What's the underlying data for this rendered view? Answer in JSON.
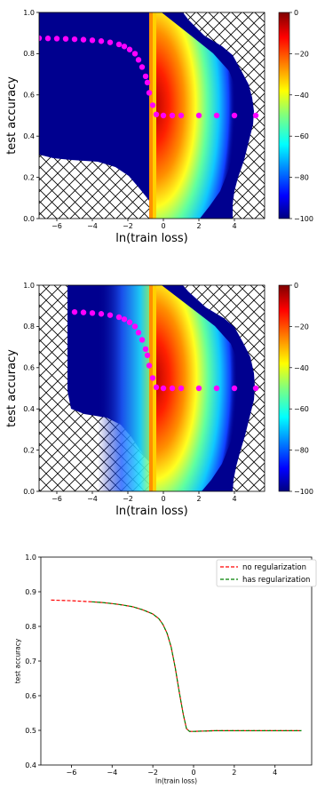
{
  "colors": {
    "line_no_reg": "#ff0000",
    "line_has_reg": "#008000",
    "marker": "#ff00ff",
    "cold": "#00008f"
  },
  "chart_data": [
    {
      "type": "heatmap",
      "xlabel": "ln(train loss)",
      "ylabel": "test accuracy",
      "xlim": [
        -7,
        5.7
      ],
      "ylim": [
        0,
        1
      ],
      "xticks": [
        "−6",
        "−4",
        "−2",
        "0",
        "2",
        "4"
      ],
      "yticks": [
        "0.0",
        "0.2",
        "0.4",
        "0.6",
        "0.8",
        "1.0"
      ],
      "colorbar": {
        "colormap": "jet",
        "range": [
          -100,
          0
        ],
        "ticks": [
          "0",
          "−20",
          "−40",
          "−60",
          "−80",
          "−100"
        ]
      },
      "hatch_regions": [
        "lower-left",
        "upper-right"
      ],
      "markers": {
        "color": "magenta",
        "x": [
          -7,
          -6.5,
          -6,
          -5.5,
          -5,
          -4.5,
          -4,
          -3.5,
          -3,
          -2.5,
          -2.2,
          -1.9,
          -1.6,
          -1.4,
          -1.2,
          -1.0,
          -0.9,
          -0.8,
          -0.6,
          -0.4,
          0,
          0.5,
          1,
          2,
          3,
          4,
          5.2
        ],
        "y": [
          0.875,
          0.874,
          0.873,
          0.872,
          0.87,
          0.868,
          0.865,
          0.861,
          0.855,
          0.845,
          0.835,
          0.82,
          0.8,
          0.77,
          0.735,
          0.69,
          0.66,
          0.61,
          0.55,
          0.505,
          0.5,
          0.5,
          0.5,
          0.5,
          0.5,
          0.5,
          0.5
        ]
      }
    },
    {
      "type": "heatmap",
      "xlabel": "ln(train loss)",
      "ylabel": "test accuracy",
      "xlim": [
        -7,
        5.7
      ],
      "ylim": [
        0,
        1
      ],
      "xticks": [
        "−6",
        "−4",
        "−2",
        "0",
        "2",
        "4"
      ],
      "yticks": [
        "0.0",
        "0.2",
        "0.4",
        "0.6",
        "0.8",
        "1.0"
      ],
      "colorbar": {
        "colormap": "jet",
        "range": [
          -100,
          0
        ],
        "ticks": [
          "0",
          "−20",
          "−40",
          "−60",
          "−80",
          "−100"
        ]
      },
      "hatch_regions": [
        "upper-left",
        "lower-left",
        "upper-right"
      ],
      "markers": {
        "color": "magenta",
        "x": [
          -5,
          -4.5,
          -4,
          -3.5,
          -3,
          -2.5,
          -2.2,
          -1.9,
          -1.6,
          -1.4,
          -1.2,
          -1.0,
          -0.9,
          -0.8,
          -0.6,
          -0.4,
          0,
          0.5,
          1,
          2,
          3,
          4,
          5.2
        ],
        "y": [
          0.87,
          0.868,
          0.865,
          0.861,
          0.855,
          0.845,
          0.835,
          0.82,
          0.8,
          0.77,
          0.735,
          0.69,
          0.66,
          0.61,
          0.55,
          0.505,
          0.5,
          0.5,
          0.5,
          0.5,
          0.5,
          0.5,
          0.5
        ]
      }
    },
    {
      "type": "line",
      "xlabel": "ln(train loss)",
      "ylabel": "test accuracy",
      "xlim": [
        -7.5,
        5.8
      ],
      "ylim": [
        0.4,
        1.0
      ],
      "xticks": [
        "−6",
        "−4",
        "−2",
        "0",
        "2",
        "4"
      ],
      "yticks": [
        "0.4",
        "0.5",
        "0.6",
        "0.7",
        "0.8",
        "0.9",
        "1.0"
      ],
      "legend_position": "top-right",
      "series": [
        {
          "name": "no regularization",
          "style": "dashed",
          "x": [
            -7,
            -6,
            -5,
            -4.5,
            -4,
            -3.5,
            -3,
            -2.5,
            -2,
            -1.7,
            -1.5,
            -1.3,
            -1.1,
            -0.9,
            -0.7,
            -0.5,
            -0.35,
            -0.2,
            0,
            0.5,
            1,
            2,
            3,
            4,
            5.3
          ],
          "y": [
            0.876,
            0.874,
            0.871,
            0.869,
            0.866,
            0.862,
            0.857,
            0.848,
            0.836,
            0.822,
            0.805,
            0.78,
            0.74,
            0.68,
            0.61,
            0.545,
            0.505,
            0.497,
            0.497,
            0.498,
            0.499,
            0.499,
            0.499,
            0.499,
            0.499
          ]
        },
        {
          "name": "has regularization",
          "style": "dashed",
          "x": [
            -5,
            -4.5,
            -4,
            -3.5,
            -3,
            -2.5,
            -2,
            -1.7,
            -1.5,
            -1.3,
            -1.1,
            -0.9,
            -0.7,
            -0.5,
            -0.35,
            -0.2,
            0,
            0.5,
            1,
            2,
            3,
            4,
            5.3
          ],
          "y": [
            0.871,
            0.869,
            0.866,
            0.862,
            0.857,
            0.848,
            0.836,
            0.822,
            0.805,
            0.78,
            0.74,
            0.68,
            0.61,
            0.545,
            0.505,
            0.497,
            0.497,
            0.498,
            0.499,
            0.499,
            0.499,
            0.499,
            0.499
          ]
        }
      ]
    }
  ]
}
